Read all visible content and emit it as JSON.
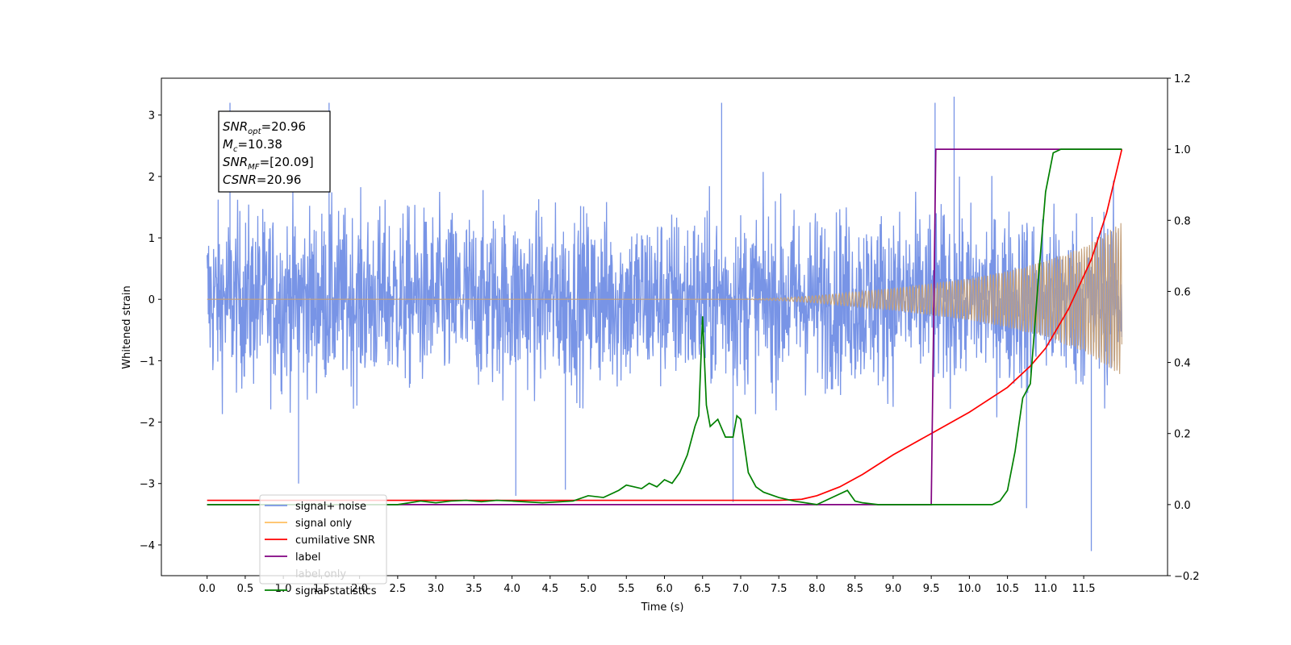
{
  "chart_data": {
    "type": "line",
    "xlabel": "Time (s)",
    "ylabel_left": "Whitened strain",
    "xlim": [
      -0.6,
      12.6
    ],
    "ylim_left": [
      -4.5,
      3.6
    ],
    "ylim_right": [
      -0.2,
      1.2
    ],
    "x_ticks": [
      "0.0",
      "0.5",
      "1.0",
      "1.5",
      "2.0",
      "2.5",
      "3.0",
      "3.5",
      "4.0",
      "4.5",
      "5.0",
      "5.5",
      "6.0",
      "6.5",
      "7.0",
      "7.5",
      "8.0",
      "8.5",
      "9.0",
      "9.5",
      "10.0",
      "10.5",
      "11.0",
      "11.5"
    ],
    "y_ticks_left": [
      "3",
      "2",
      "1",
      "0",
      "−1",
      "−2",
      "−3",
      "−4"
    ],
    "y_ticks_right": [
      "1.2",
      "1.0",
      "0.8",
      "0.6",
      "0.4",
      "0.2",
      "0.0",
      "−0.2"
    ],
    "grid": false,
    "legend_position": "lower-left",
    "annotation": {
      "lines": [
        {
          "base": "SNR",
          "sub": "opt",
          "value": "=20.96"
        },
        {
          "base": "M",
          "sub": "c",
          "value": "=10.38"
        },
        {
          "base": "SNR",
          "sub": "MF",
          "value": "=[20.09]"
        },
        {
          "base": "CSNR",
          "sub": "",
          "value": "=20.96"
        }
      ]
    },
    "series": [
      {
        "name": "signal+ noise",
        "axis": "left",
        "color": "#7894e6",
        "kind": "noise",
        "x_range": [
          0.0,
          12.0
        ],
        "envelope_approx": 1.6,
        "peaks": [
          [
            0.3,
            3.2
          ],
          [
            1.6,
            3.2
          ],
          [
            6.75,
            3.2
          ],
          [
            9.55,
            3.2
          ],
          [
            9.8,
            3.3
          ],
          [
            11.6,
            -4.1
          ],
          [
            1.2,
            -3.0
          ],
          [
            4.05,
            -3.2
          ],
          [
            4.7,
            -3.1
          ],
          [
            6.9,
            -3.3
          ],
          [
            10.75,
            -3.4
          ]
        ]
      },
      {
        "name": "signal only",
        "axis": "left",
        "color": "#ffbf60",
        "kind": "chirp",
        "x_range": [
          0.0,
          12.0
        ],
        "amplitude": [
          [
            0,
            0
          ],
          [
            7,
            0.0
          ],
          [
            7.5,
            0.02
          ],
          [
            8,
            0.06
          ],
          [
            8.5,
            0.12
          ],
          [
            9,
            0.18
          ],
          [
            9.5,
            0.26
          ],
          [
            10,
            0.34
          ],
          [
            10.5,
            0.46
          ],
          [
            11,
            0.62
          ],
          [
            11.5,
            0.85
          ],
          [
            12,
            1.25
          ]
        ]
      },
      {
        "name": "cumilative SNR",
        "axis": "right",
        "color": "#ff0000",
        "x": [
          0,
          7.5,
          7.8,
          8.0,
          8.3,
          8.6,
          9.0,
          9.5,
          10.0,
          10.5,
          10.8,
          11.0,
          11.3,
          11.6,
          11.8,
          12.0
        ],
        "y": [
          0.012,
          0.012,
          0.015,
          0.025,
          0.05,
          0.085,
          0.14,
          0.2,
          0.26,
          0.33,
          0.39,
          0.44,
          0.55,
          0.69,
          0.82,
          1.0
        ]
      },
      {
        "name": "label",
        "axis": "right",
        "color": "#800080",
        "x": [
          0,
          9.5,
          9.56,
          12.0
        ],
        "y": [
          0,
          0,
          1,
          1
        ]
      },
      {
        "name": "label only",
        "axis": "right",
        "color": "#ffffff",
        "x": [],
        "y": []
      },
      {
        "name": "signal statistics",
        "axis": "right",
        "color": "#008000",
        "x": [
          0,
          2.5,
          2.8,
          3.0,
          3.2,
          3.4,
          3.6,
          3.8,
          4.0,
          4.4,
          4.8,
          5.0,
          5.2,
          5.4,
          5.5,
          5.6,
          5.7,
          5.8,
          5.9,
          6.0,
          6.1,
          6.2,
          6.3,
          6.4,
          6.45,
          6.5,
          6.55,
          6.6,
          6.7,
          6.8,
          6.9,
          6.95,
          7.0,
          7.1,
          7.2,
          7.3,
          7.5,
          7.7,
          8.0,
          8.2,
          8.4,
          8.5,
          8.6,
          8.8,
          9.0,
          9.5,
          10.0,
          10.3,
          10.4,
          10.5,
          10.6,
          10.7,
          10.75,
          10.8,
          10.9,
          11.0,
          11.1,
          11.2,
          12.0
        ],
        "y": [
          0,
          0,
          0.01,
          0.005,
          0.01,
          0.012,
          0.008,
          0.012,
          0.01,
          0.005,
          0.01,
          0.025,
          0.02,
          0.04,
          0.055,
          0.05,
          0.045,
          0.06,
          0.05,
          0.07,
          0.06,
          0.09,
          0.14,
          0.22,
          0.25,
          0.53,
          0.28,
          0.22,
          0.24,
          0.19,
          0.19,
          0.25,
          0.24,
          0.09,
          0.05,
          0.035,
          0.02,
          0.01,
          0.0,
          0.02,
          0.04,
          0.01,
          0.005,
          0.0,
          0.0,
          0.0,
          0.0,
          0.0,
          0.01,
          0.04,
          0.15,
          0.3,
          0.32,
          0.34,
          0.62,
          0.88,
          0.99,
          1.0,
          1.0
        ]
      }
    ]
  }
}
